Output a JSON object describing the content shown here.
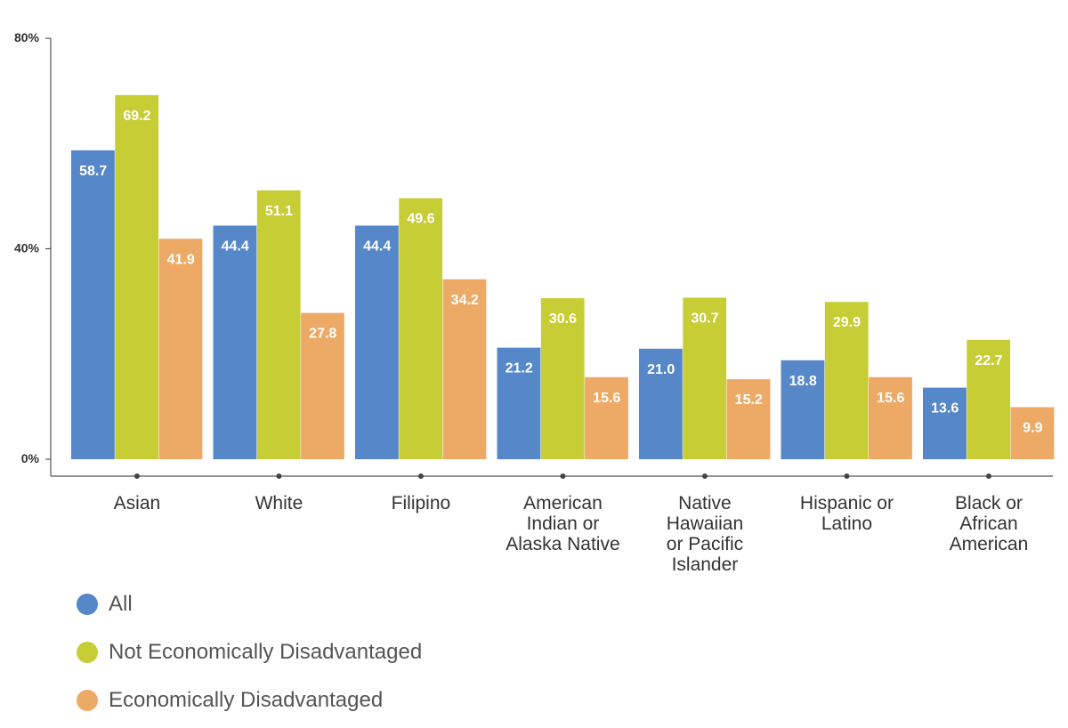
{
  "chart_data": {
    "type": "bar",
    "title": "",
    "xlabel": "",
    "ylabel": "",
    "ylim": [
      0,
      80
    ],
    "yticks": [
      {
        "value": 0,
        "label": "0%"
      },
      {
        "value": 40,
        "label": "40%"
      },
      {
        "value": 80,
        "label": "80%"
      }
    ],
    "categories": [
      [
        "Asian"
      ],
      [
        "White"
      ],
      [
        "Filipino"
      ],
      [
        "American",
        "Indian or",
        "Alaska Native"
      ],
      [
        "Native",
        "Hawaiian",
        "or Pacific",
        "Islander"
      ],
      [
        "Hispanic or",
        "Latino"
      ],
      [
        "Black or",
        "African",
        "American"
      ]
    ],
    "series": [
      {
        "name": "All",
        "color": "#5587C9",
        "values": [
          58.7,
          44.4,
          44.4,
          21.2,
          21.0,
          18.8,
          13.6
        ],
        "labels": [
          "58.7",
          "44.4",
          "44.4",
          "21.2",
          "21.0",
          "18.8",
          "13.6"
        ]
      },
      {
        "name": "Not Economically Disadvantaged",
        "color": "#C7CD34",
        "values": [
          69.2,
          51.1,
          49.6,
          30.6,
          30.7,
          29.9,
          22.7
        ],
        "labels": [
          "69.2",
          "51.1",
          "49.6",
          "30.6",
          "30.7",
          "29.9",
          "22.7"
        ]
      },
      {
        "name": "Economically Disadvantaged",
        "color": "#EDAA67",
        "values": [
          41.9,
          27.8,
          34.2,
          15.6,
          15.2,
          15.6,
          9.9
        ],
        "labels": [
          "41.9",
          "27.8",
          "34.2",
          "15.6",
          "15.2",
          "15.6",
          "9.9"
        ]
      }
    ],
    "legend_position": "bottom-left",
    "grid": false
  }
}
